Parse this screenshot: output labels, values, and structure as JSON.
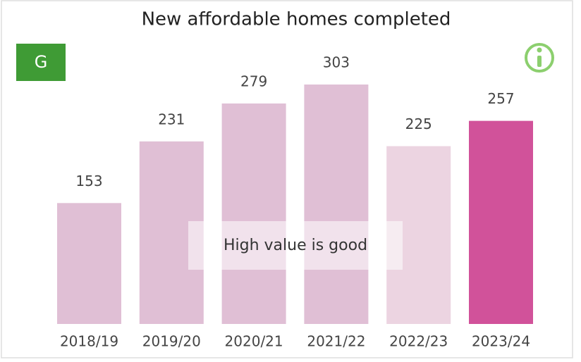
{
  "chart_data": {
    "type": "bar",
    "title": "New affordable homes completed",
    "badge": "G",
    "annotation": "High value is good",
    "categories": [
      "2018/19",
      "2019/20",
      "2020/21",
      "2021/22",
      "2022/23",
      "2023/24"
    ],
    "values": [
      153,
      231,
      279,
      303,
      225,
      257
    ],
    "colors": [
      "#e0bfd5",
      "#e0bfd5",
      "#e0bfd5",
      "#e0bfd5",
      "#ecd4e1",
      "#d1529a"
    ]
  }
}
